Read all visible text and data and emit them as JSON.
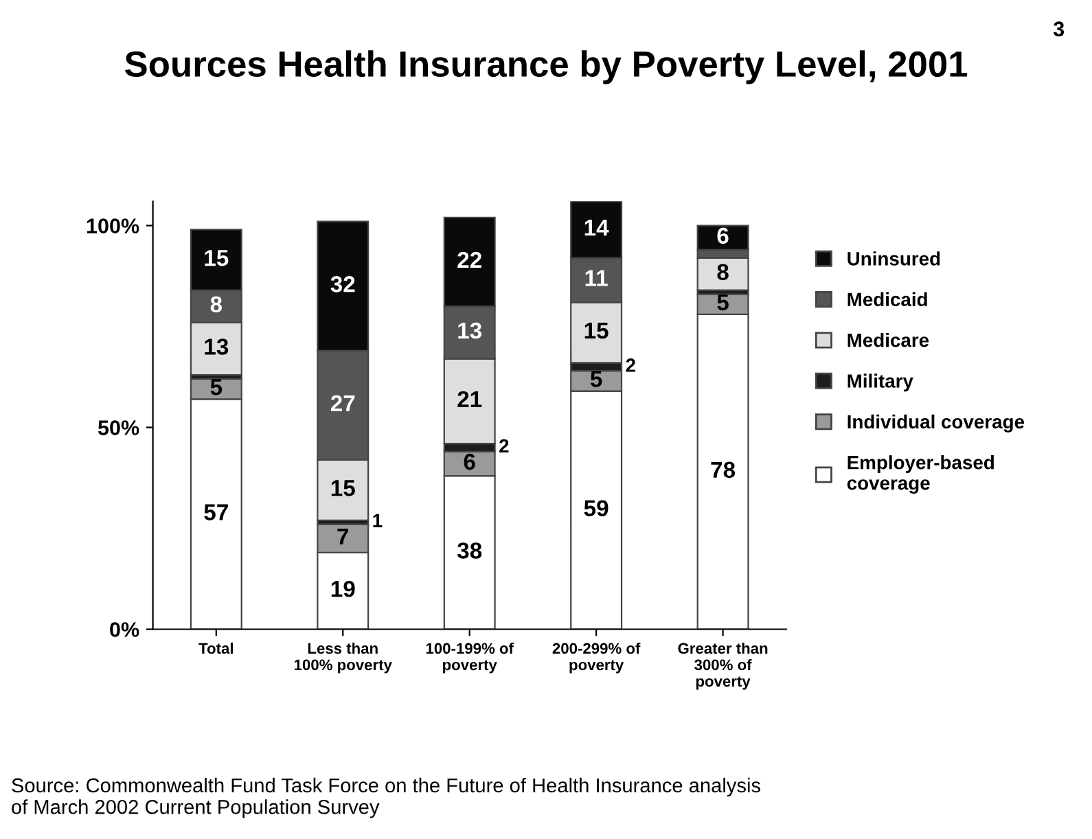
{
  "chart_data": {
    "type": "bar",
    "title": "Sources Health Insurance by Poverty Level, 2001",
    "categories": [
      "Total",
      "Less than\n100% poverty",
      "100-199% of\npoverty",
      "200-299% of\npoverty",
      "Greater than\n300% of\npoverty"
    ],
    "stacked": true,
    "series": [
      {
        "name": "Employer-based\ncoverage",
        "color": "#ffffff",
        "values": [
          57,
          19,
          38,
          59,
          78
        ],
        "value_labels": [
          "57",
          "19",
          "38",
          "59",
          "78"
        ]
      },
      {
        "name": "Individual coverage",
        "color": "#9a9a9a",
        "values": [
          5,
          7,
          6,
          5,
          5
        ],
        "value_labels": [
          "5",
          "7",
          "6",
          "5",
          "5"
        ]
      },
      {
        "name": "Military",
        "color": "#1e1e1e",
        "values": [
          1,
          1,
          2,
          2,
          1
        ],
        "value_labels": [
          null,
          "1",
          "2",
          "2",
          null
        ]
      },
      {
        "name": "Medicare",
        "color": "#dedede",
        "values": [
          13,
          15,
          21,
          15,
          8
        ],
        "value_labels": [
          "13",
          "15",
          "21",
          "15",
          "8"
        ]
      },
      {
        "name": "Medicaid",
        "color": "#555555",
        "values": [
          8,
          27,
          13,
          11,
          2
        ],
        "value_labels": [
          "8",
          "27",
          "13",
          "11",
          null
        ]
      },
      {
        "name": "Uninsured",
        "color": "#0a0a0a",
        "values": [
          15,
          32,
          22,
          14,
          6
        ],
        "value_labels": [
          "15",
          "32",
          "22",
          "14",
          "6"
        ]
      }
    ],
    "ylim": [
      0,
      106
    ],
    "yticks": [
      {
        "value": 0,
        "label": "0%"
      },
      {
        "value": 50,
        "label": "50%"
      },
      {
        "value": 100,
        "label": "100%"
      }
    ],
    "grid": false,
    "legend": "right",
    "annotations": [
      "3",
      "Source: Commonwealth Fund Task Force on the Future of Health Insurance analysis\nof March 2002 Current Population Survey"
    ]
  }
}
